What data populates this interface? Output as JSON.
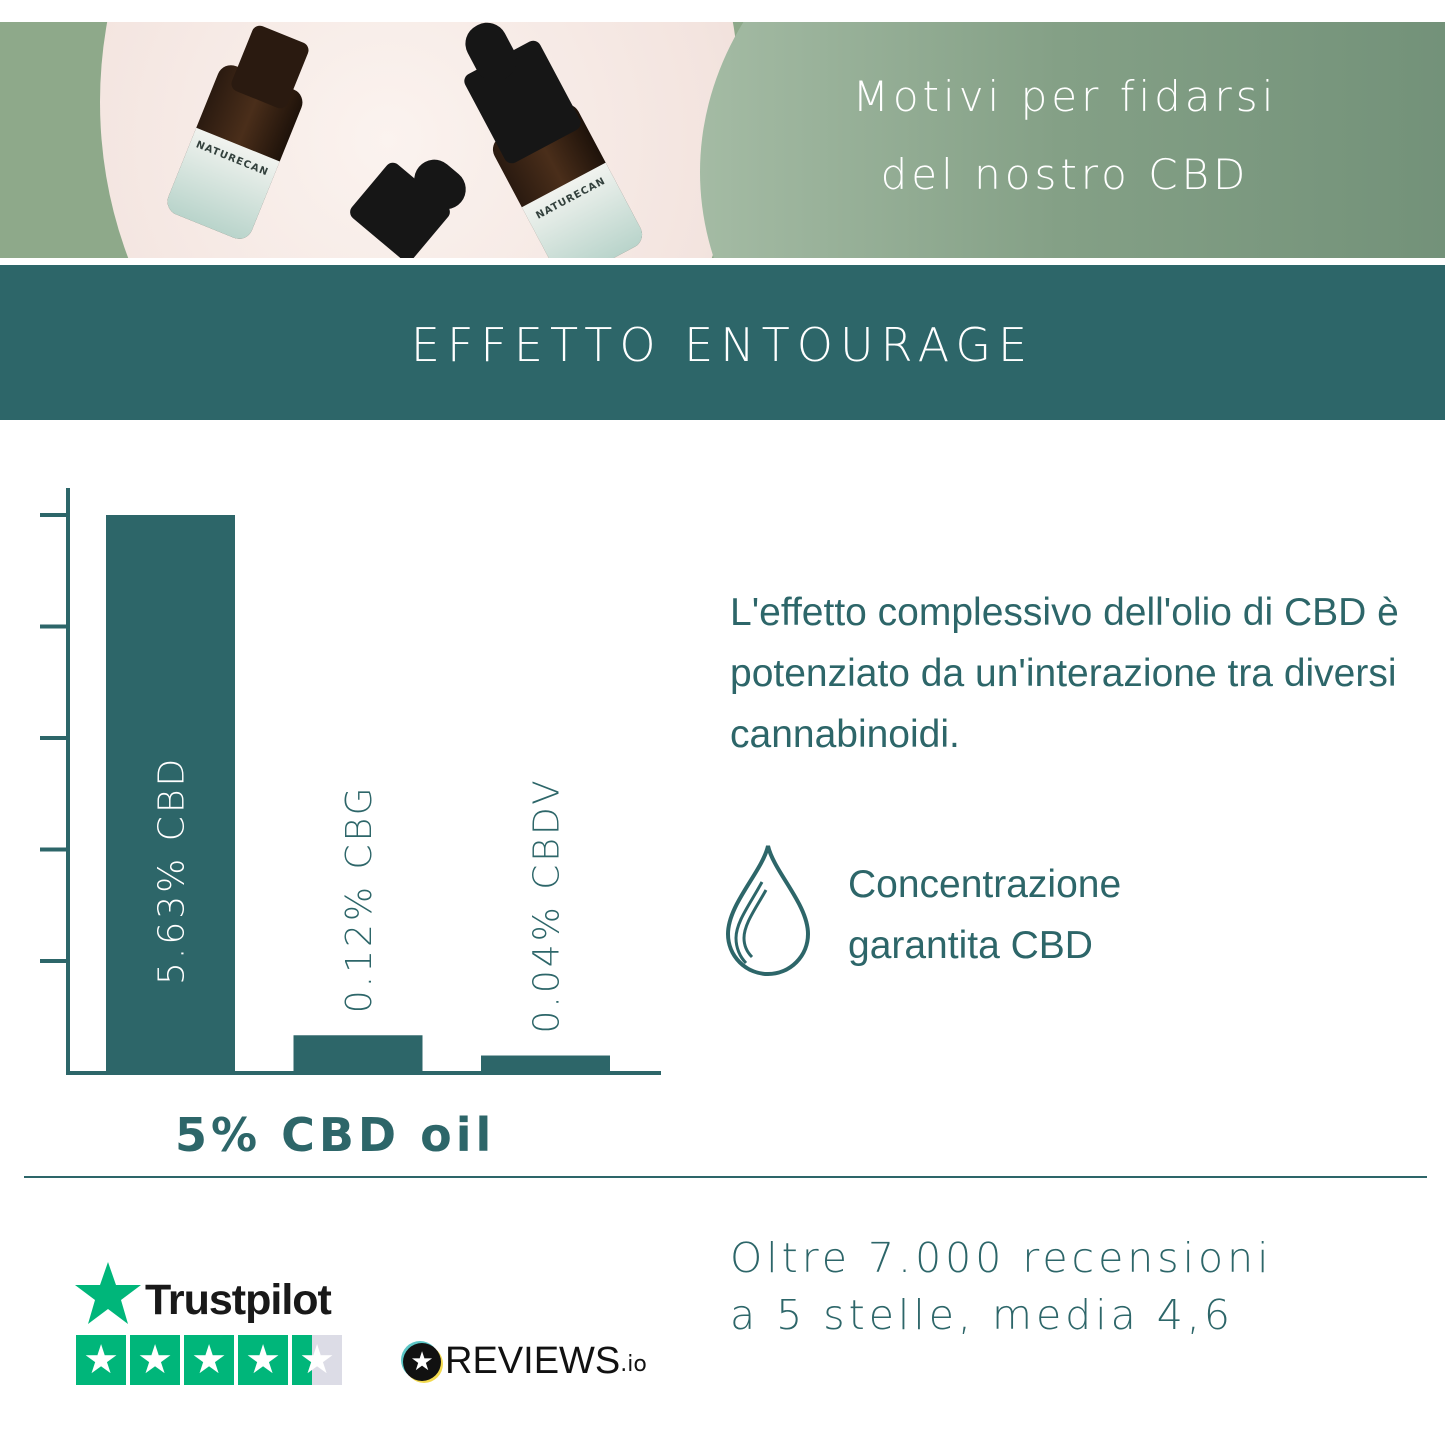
{
  "banner": {
    "title_line1": "Motivi per fidarsi",
    "title_line2": "del nostro CBD",
    "photo_brand": "NATURECAN"
  },
  "section": {
    "title": "EFFETTO ENTOURAGE"
  },
  "chart_data": {
    "type": "bar",
    "categories": [
      "CBD",
      "CBG",
      "CBDV"
    ],
    "values": [
      5.63,
      0.12,
      0.04
    ],
    "unit": "%",
    "bar_labels": [
      "5.63% CBD",
      "0.12% CBG",
      "0.04% CBDV"
    ],
    "xlabel": "5% CBD oil",
    "ylabel": "",
    "y_tick_labels": false,
    "grid": false,
    "color": "#2d6669"
  },
  "description": "L'effetto complessivo dell'olio di CBD è potenziato da un'interazione tra diversi cannabinoidi.",
  "feature": {
    "icon": "drop-icon",
    "line1": "Concentrazione",
    "line2": "garantita CBD"
  },
  "reviews": {
    "line1": "Oltre 7.000 recensioni",
    "line2": "a 5 stelle, media 4,6",
    "trustpilot": {
      "name": "Trustpilot",
      "rating": 4.5,
      "stars": 5,
      "color": "#00b67a"
    },
    "reviews_io": {
      "name": "REVIEWS",
      "suffix": ".io"
    }
  },
  "colors": {
    "primary": "#2d6669",
    "banner_green": "#8aa78c"
  }
}
